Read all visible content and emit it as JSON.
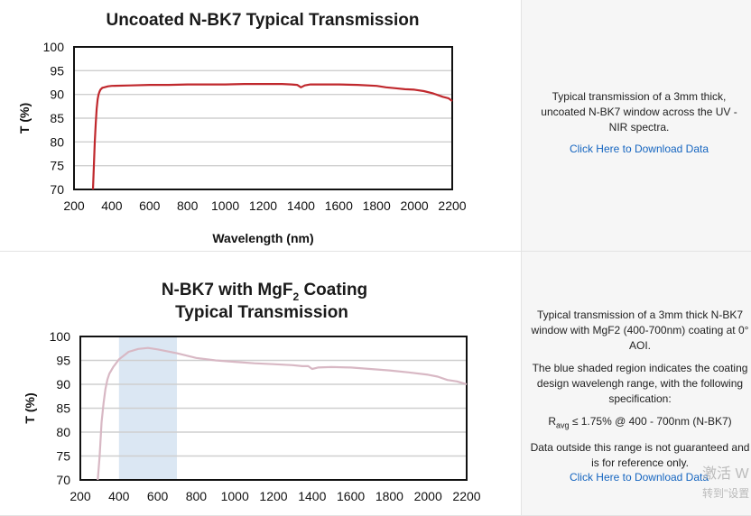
{
  "chart_data": [
    {
      "type": "line",
      "title": "Uncoated N-BK7 Typical Transmission",
      "xlabel": "Wavelength (nm)",
      "ylabel": "T (%)",
      "xlim": [
        200,
        2200
      ],
      "ylim": [
        70,
        100
      ],
      "xticks": [
        "200",
        "400",
        "600",
        "800",
        "1000",
        "1200",
        "1400",
        "1600",
        "1800",
        "2000",
        "2200"
      ],
      "yticks": [
        "100",
        "95",
        "90",
        "85",
        "80",
        "75",
        "70"
      ],
      "grid": true,
      "line_color": "#c0282d",
      "series": [
        {
          "x": [
            300,
            305,
            310,
            315,
            320,
            325,
            330,
            335,
            340,
            345,
            350,
            360,
            380,
            400,
            500,
            600,
            700,
            800,
            900,
            1000,
            1100,
            1200,
            1300,
            1350,
            1380,
            1400,
            1420,
            1450,
            1500,
            1600,
            1700,
            1800,
            1850,
            1900,
            1950,
            2000,
            2050,
            2100,
            2150,
            2180,
            2200
          ],
          "y": [
            70,
            75,
            80,
            84,
            87,
            89,
            90,
            90.6,
            91,
            91.2,
            91.4,
            91.5,
            91.7,
            91.8,
            91.9,
            92.0,
            92.0,
            92.1,
            92.1,
            92.1,
            92.2,
            92.2,
            92.2,
            92.1,
            92.0,
            91.5,
            91.9,
            92.1,
            92.1,
            92.1,
            92.0,
            91.8,
            91.5,
            91.3,
            91.1,
            91.0,
            90.7,
            90.2,
            89.5,
            89.2,
            88.6
          ]
        }
      ]
    },
    {
      "type": "line",
      "title_line1": "N-BK7 with MgF",
      "title_sub": "2",
      "title_line1_end": " Coating",
      "title_line2": "Typical Transmission",
      "xlabel": "",
      "ylabel": "T (%)",
      "xlim": [
        200,
        2200
      ],
      "ylim": [
        70,
        100
      ],
      "xticks": [
        "200",
        "400",
        "600",
        "800",
        "1000",
        "1200",
        "1400",
        "1600",
        "1800",
        "2000",
        "2200"
      ],
      "yticks": [
        "100",
        "95",
        "90",
        "85",
        "80",
        "75",
        "70"
      ],
      "grid": true,
      "line_color": "#d8b8c4",
      "shade_color": "#dbe7f3",
      "shaded_region": [
        400,
        700
      ],
      "series": [
        {
          "x": [
            290,
            300,
            310,
            320,
            330,
            340,
            350,
            370,
            400,
            450,
            500,
            550,
            600,
            650,
            700,
            800,
            900,
            1000,
            1100,
            1200,
            1300,
            1350,
            1380,
            1400,
            1430,
            1500,
            1600,
            1700,
            1800,
            1900,
            2000,
            2050,
            2100,
            2150,
            2200
          ],
          "y": [
            70,
            75,
            82,
            86,
            89,
            91,
            92.2,
            93.6,
            95.2,
            96.8,
            97.4,
            97.6,
            97.3,
            96.9,
            96.5,
            95.5,
            95.0,
            94.7,
            94.4,
            94.2,
            94.0,
            93.8,
            93.8,
            93.2,
            93.5,
            93.6,
            93.5,
            93.2,
            92.9,
            92.5,
            92.0,
            91.6,
            90.9,
            90.6,
            90.0
          ]
        }
      ]
    }
  ],
  "info1": {
    "text": "Typical transmission of a 3mm thick, uncoated N-BK7 window across the UV - NIR spectra.",
    "link": "Click Here to Download Data"
  },
  "info2": {
    "text1": "Typical transmission of a 3mm thick N-BK7 window with MgF2 (400-700nm) coating at 0° AOI.",
    "text2": "The blue shaded region indicates the coating design wavelengh range, with the following specification:",
    "spec_r": "R",
    "spec_sub": "avg",
    "spec_rest": " ≤ 1.75% @ 400 - 700nm (N-BK7)",
    "text3": "Data outside this range is not guaranteed and is for reference only.",
    "link": "Click Here to Download Data"
  },
  "watermark": {
    "line1": "激活 W",
    "line2": "转到\"设置"
  }
}
